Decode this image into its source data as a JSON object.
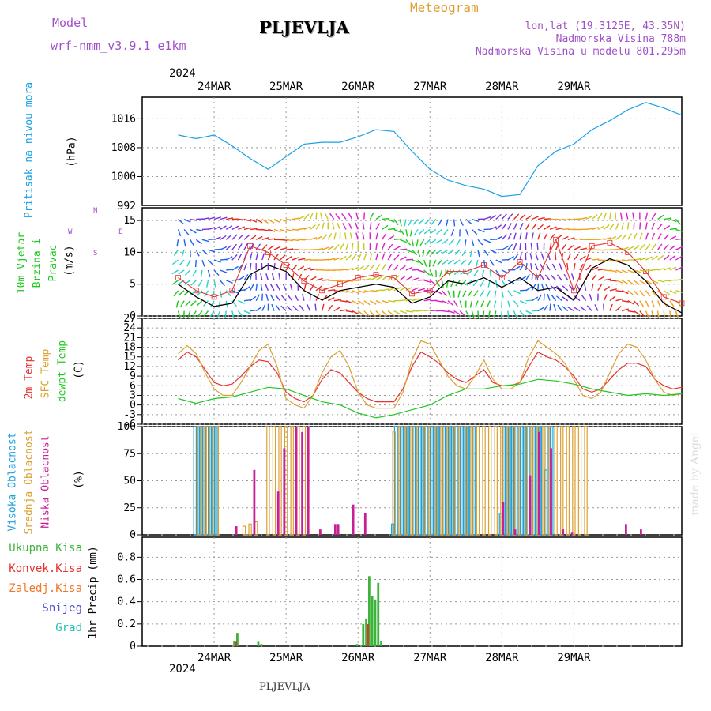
{
  "header": {
    "model_label": "Model",
    "model_name": "wrf-nmm_v3.9.1 e1km",
    "station": "PLJEVLJA",
    "product": "Meteogram",
    "coords": "lon,lat (19.3125E, 43.35N)",
    "elevation": "Nadmorska Visina 788m",
    "model_elevation": "Nadmorska Visina u modelu 801.295m",
    "year_top": "2024",
    "year_bottom": "2024",
    "footer_station": "PLJEVLJA",
    "credit": "made by Angel"
  },
  "colors": {
    "pressure": "#1aa0e6",
    "temp2m": "#e63232",
    "sfc_temp": "#dca032",
    "dewpoint": "#1ec81e",
    "wind_speed": "#000000",
    "high_cloud": "#1ea0dc",
    "mid_cloud": "#dca032",
    "low_cloud": "#c81e96",
    "total_precip": "#3cb43c",
    "conv_precip": "#e63232",
    "frozen_precip": "#f07828",
    "snow": "#5050dc",
    "hail": "#1ebeb4",
    "purple_text": "#a050c8",
    "grid": "#999999"
  },
  "chart_data": [
    {
      "type": "line",
      "panel": "pressure",
      "ylabel_left": "Pritisak na nivou mora",
      "unit": "(hPa)",
      "x_labels": [
        "24MAR",
        "25MAR",
        "26MAR",
        "27MAR",
        "28MAR",
        "29MAR"
      ],
      "yticks": [
        1000,
        1008,
        1016
      ],
      "ylim": [
        992,
        1022
      ],
      "cut_tick_label": "992",
      "series": [
        {
          "key": "pressure",
          "x": [
            0,
            6,
            12,
            18,
            24,
            30,
            36,
            42,
            48,
            54,
            60,
            66,
            72,
            78,
            84,
            90,
            96,
            102,
            108,
            114,
            120,
            126,
            132,
            138
          ],
          "values": [
            1011.5,
            1010.5,
            1011.5,
            1008.5,
            1005,
            1002,
            1005.5,
            1009,
            1009.5,
            1009.5,
            1011,
            1013,
            1012.5,
            1007,
            1002,
            999,
            997.5,
            996.5,
            994.5,
            995,
            1003,
            1007,
            1009,
            1013
          ]
        },
        {
          "key": "pressure",
          "x": [
            138,
            144,
            150,
            156,
            162,
            168
          ],
          "values": [
            1013,
            1015.5,
            1018.5,
            1020.5,
            1019,
            1017
          ]
        }
      ]
    },
    {
      "type": "line",
      "panel": "wind",
      "ylabel_left": "10m Vjetar Brzina i Pravac",
      "unit": "(m/s)",
      "compass": {
        "north": "N",
        "west": "W",
        "east": "E",
        "south": "S"
      },
      "yticks": [
        0,
        5,
        10,
        15
      ],
      "ylim": [
        0,
        17
      ],
      "series": [
        {
          "key": "wind_speed",
          "x": [
            0,
            6,
            12,
            18,
            24,
            30,
            36,
            42,
            48,
            54,
            60,
            66,
            72,
            78,
            84,
            90,
            96,
            102,
            108,
            114,
            120,
            126,
            132,
            138,
            144,
            150,
            156,
            162,
            168
          ],
          "values": [
            5,
            3,
            1.5,
            2,
            6.5,
            8,
            7,
            4,
            2.5,
            4,
            4.5,
            5,
            4.5,
            2,
            3,
            5.5,
            5,
            6,
            4.5,
            6,
            4,
            4.5,
            2.5,
            7.5,
            9,
            8,
            5.5,
            2,
            0.5
          ]
        },
        {
          "key": "wind_gust",
          "x": [
            0,
            6,
            12,
            18,
            24,
            30,
            36,
            42,
            48,
            54,
            60,
            66,
            72,
            78,
            84,
            90,
            96,
            102,
            108,
            114,
            120,
            126,
            132,
            138,
            144,
            150,
            156,
            162,
            168
          ],
          "values": [
            6,
            4,
            3,
            4,
            11,
            10,
            8,
            5.5,
            4,
            5,
            6,
            6.5,
            6,
            3.5,
            4,
            7,
            7,
            8,
            6,
            8.5,
            6,
            12,
            4,
            11,
            11.5,
            10,
            7,
            3,
            2
          ]
        }
      ]
    },
    {
      "type": "line",
      "panel": "temperature",
      "ylabel_left": [
        "2m Temp",
        "SFC Temp",
        "dewpt Temp"
      ],
      "unit": "(C)",
      "yticks": [
        -6,
        -3,
        0,
        3,
        6,
        9,
        12,
        15,
        18,
        21,
        24,
        27
      ],
      "ylim": [
        -6,
        27
      ],
      "series": [
        {
          "name": "2m Temp",
          "key": "temp2m",
          "x": [
            0,
            3,
            6,
            9,
            12,
            15,
            18,
            21,
            24,
            27,
            30,
            33,
            36,
            39,
            42,
            45,
            48,
            51,
            54,
            57,
            60,
            63,
            66,
            69,
            72,
            75,
            78,
            81,
            84,
            87,
            90,
            93,
            96,
            99,
            102,
            105,
            108,
            111,
            114,
            117,
            120,
            123,
            126,
            129,
            132,
            135,
            138,
            141,
            144,
            147,
            150,
            153,
            156,
            159,
            162,
            165,
            168
          ],
          "values": [
            14,
            16.5,
            15,
            11,
            7,
            6,
            6.5,
            9,
            12,
            14,
            13.5,
            10,
            4,
            2,
            1,
            3,
            8,
            11,
            10,
            7,
            4,
            2,
            1,
            1,
            1,
            5,
            12,
            16.5,
            15,
            13,
            10,
            8,
            7,
            9,
            11,
            7,
            6,
            6,
            7,
            12,
            16.5,
            15,
            14,
            12,
            9,
            5,
            4,
            5,
            8,
            11,
            13,
            13,
            12,
            8,
            6,
            5,
            5.5
          ]
        },
        {
          "name": "SFC Temp",
          "key": "sfc_temp",
          "x": [
            0,
            3,
            6,
            9,
            12,
            15,
            18,
            21,
            24,
            27,
            30,
            33,
            36,
            39,
            42,
            45,
            48,
            51,
            54,
            57,
            60,
            63,
            66,
            69,
            72,
            75,
            78,
            81,
            84,
            87,
            90,
            93,
            96,
            99,
            102,
            105,
            108,
            111,
            114,
            117,
            120,
            123,
            126,
            129,
            132,
            135,
            138,
            141,
            144,
            147,
            150,
            153,
            156,
            159,
            162,
            165,
            168
          ],
          "values": [
            16,
            18.5,
            16,
            10,
            5,
            3,
            3,
            7,
            12,
            17,
            19,
            12,
            2,
            0,
            -1,
            3,
            10,
            15,
            17,
            12,
            4,
            0,
            -1,
            -1,
            -1,
            4,
            14,
            20,
            19,
            14,
            9,
            6,
            5,
            9,
            14,
            8,
            5,
            5,
            7,
            15,
            20,
            18,
            16,
            13,
            8,
            3,
            2,
            4,
            10,
            16,
            19,
            18,
            14,
            8,
            4,
            3,
            3.5
          ]
        },
        {
          "name": "dewpt Temp",
          "key": "dewpoint",
          "x": [
            0,
            6,
            12,
            18,
            24,
            30,
            36,
            42,
            48,
            54,
            60,
            66,
            72,
            78,
            84,
            90,
            96,
            102,
            108,
            114,
            120,
            126,
            132,
            138,
            144,
            150,
            156,
            162,
            168
          ],
          "values": [
            2,
            0.5,
            2,
            2.5,
            4,
            5.5,
            5,
            3,
            1,
            0,
            -2.5,
            -4,
            -3,
            -1.5,
            0,
            3,
            5,
            5,
            6,
            6.5,
            8,
            7.5,
            6.5,
            5,
            4,
            3,
            3.5,
            3,
            3.5
          ]
        }
      ]
    },
    {
      "type": "bar",
      "panel": "clouds",
      "ylabel_left": [
        "Visoka Oblacnost",
        "Srednja Oblacnost",
        "Niska Oblacnost"
      ],
      "unit": "(%)",
      "yticks": [
        0,
        25,
        50,
        75,
        100
      ],
      "ylim": [
        0,
        100
      ],
      "series": [
        {
          "name": "Visoka Oblacnost",
          "key": "high_cloud",
          "x": [
            6,
            7,
            8,
            9,
            10,
            11,
            12,
            13,
            72,
            73,
            74,
            75,
            76,
            77,
            78,
            79,
            80,
            81,
            82,
            83,
            84,
            85,
            86,
            87,
            88,
            89,
            90,
            91,
            92,
            93,
            94,
            95,
            96,
            97,
            98,
            99,
            108,
            109,
            110,
            111,
            112,
            113,
            114,
            115,
            116,
            117,
            118,
            119,
            120,
            121,
            122,
            123,
            124,
            125
          ],
          "values": [
            100,
            100,
            100,
            100,
            100,
            100,
            100,
            100,
            10,
            100,
            100,
            100,
            100,
            100,
            100,
            100,
            100,
            100,
            100,
            100,
            100,
            100,
            100,
            100,
            100,
            100,
            100,
            100,
            100,
            100,
            100,
            100,
            100,
            100,
            100,
            100,
            20,
            100,
            100,
            100,
            100,
            100,
            100,
            100,
            100,
            100,
            100,
            100,
            100,
            100,
            100,
            60,
            100,
            100
          ]
        },
        {
          "name": "Srednja Oblacnost",
          "key": "mid_cloud",
          "x": [
            7,
            9,
            11,
            13,
            18,
            20,
            22,
            24,
            26,
            28,
            30,
            32,
            34,
            36,
            38,
            40,
            42,
            44,
            46,
            48,
            50,
            52,
            54,
            56,
            58,
            60,
            62,
            64,
            66,
            68,
            70,
            72,
            74,
            76,
            78,
            80,
            82,
            84,
            86,
            88,
            90,
            92,
            94,
            96,
            98,
            100,
            102,
            104,
            106,
            108,
            110,
            112,
            114,
            116,
            118,
            120,
            122,
            124,
            126,
            128,
            130,
            132,
            134,
            136,
            138,
            140,
            142,
            144,
            146,
            148,
            150,
            152,
            154,
            156,
            158,
            160,
            162,
            164,
            166,
            168
          ],
          "values": [
            100,
            100,
            100,
            100,
            0,
            0,
            8,
            10,
            12,
            0,
            100,
            100,
            100,
            100,
            100,
            100,
            100,
            0,
            0,
            0,
            0,
            0,
            0,
            0,
            0,
            0,
            0,
            0,
            0,
            0,
            0,
            95,
            100,
            100,
            100,
            100,
            100,
            100,
            100,
            100,
            100,
            100,
            100,
            100,
            100,
            100,
            100,
            100,
            100,
            100,
            100,
            100,
            100,
            100,
            100,
            100,
            100,
            100,
            100,
            100,
            100,
            100,
            100,
            100,
            0,
            0,
            0,
            0,
            0,
            0,
            0,
            0,
            0,
            0,
            0,
            0,
            0,
            0,
            0,
            0
          ]
        },
        {
          "name": "Niska Oblacnost",
          "key": "low_cloud",
          "x": [
            19,
            25,
            33,
            35,
            39,
            41,
            43,
            47,
            52,
            53,
            58,
            62,
            108,
            112,
            117,
            120,
            124,
            128,
            131,
            149,
            154
          ],
          "values": [
            8,
            60,
            40,
            80,
            100,
            95,
            100,
            5,
            10,
            10,
            28,
            20,
            30,
            5,
            55,
            95,
            80,
            5,
            2,
            10,
            5
          ]
        }
      ]
    },
    {
      "type": "bar",
      "panel": "precipitation",
      "ylabel_left": [
        "Ukupna Kisa",
        "Konvek.Kisa",
        "Zaledj.Kisa",
        "Snijeg",
        "Grad"
      ],
      "unit": "1hr Precip (mm)",
      "yticks": [
        0,
        0.2,
        0.4,
        0.6,
        0.8
      ],
      "ylim": [
        0,
        0.98
      ],
      "series": [
        {
          "name": "Ukupna Kisa",
          "key": "total_precip",
          "x": [
            19,
            20,
            27,
            28,
            60,
            62,
            63,
            64,
            65,
            66,
            67,
            68
          ],
          "values": [
            0.05,
            0.12,
            0.04,
            0.02,
            0.02,
            0.2,
            0.25,
            0.63,
            0.45,
            0.42,
            0.57,
            0.05
          ]
        },
        {
          "name": "Konvek.Kisa",
          "key": "conv_precip",
          "x": [
            19,
            63
          ],
          "values": [
            0.04,
            0.2
          ]
        }
      ]
    }
  ]
}
